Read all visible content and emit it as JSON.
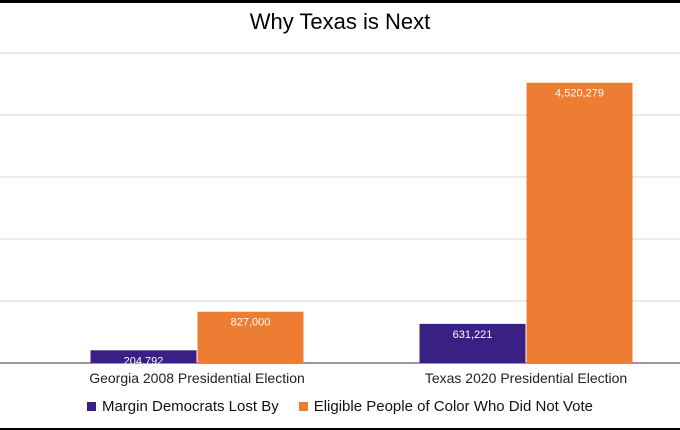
{
  "chart_data": {
    "type": "bar",
    "title": "Why Texas is Next",
    "xlabel": "",
    "ylabel": "",
    "categories": [
      "Georgia 2008 Presidential Election",
      "Texas 2020 Presidential Election"
    ],
    "series": [
      {
        "name": "Margin Democrats Lost By",
        "values": [
          204792,
          631221
        ],
        "labels": [
          "204,792",
          "631,221"
        ],
        "color": "#3a1f84"
      },
      {
        "name": "Eligible People of Color Who Did Not Vote",
        "values": [
          827000,
          4520279
        ],
        "labels": [
          "827,000",
          "4,520,279"
        ],
        "color": "#ee7d34"
      }
    ],
    "ylim": [
      0,
      5000000
    ],
    "grid": true,
    "legend_position": "bottom",
    "y_tick_labels_shown": false
  }
}
